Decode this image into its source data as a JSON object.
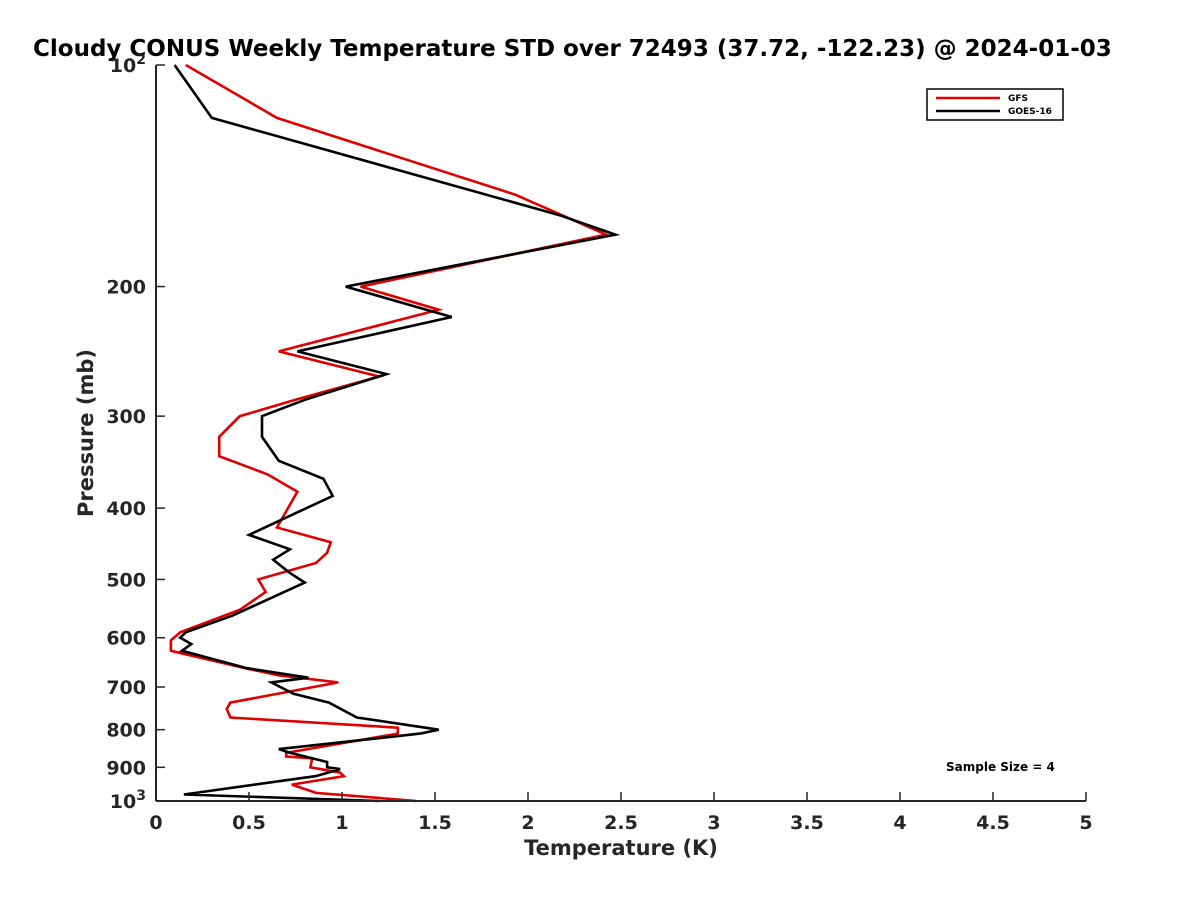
{
  "chart_data": {
    "type": "line",
    "title": "Cloudy CONUS Weekly Temperature STD over 72493 (37.72, -122.23) @ 2024-01-03",
    "xlabel": "Temperature (K)",
    "ylabel": "Pressure (mb)",
    "xlim": [
      0,
      5
    ],
    "ylim": [
      100,
      1000
    ],
    "y_scale": "log",
    "y_reversed": true,
    "grid": false,
    "legend_position": "top-right",
    "x_ticks": [
      0,
      0.5,
      1,
      1.5,
      2,
      2.5,
      3,
      3.5,
      4,
      4.5,
      5
    ],
    "x_tick_labels": [
      "0",
      "0.5",
      "1",
      "1.5",
      "2",
      "2.5",
      "3",
      "3.5",
      "4",
      "4.5",
      "5"
    ],
    "y_ticks": [
      100,
      200,
      300,
      400,
      500,
      600,
      700,
      800,
      900,
      1000
    ],
    "y_tick_labels": [
      {
        "base": "10",
        "exp": "2"
      },
      {
        "base": "200",
        "exp": ""
      },
      {
        "base": "300",
        "exp": ""
      },
      {
        "base": "400",
        "exp": ""
      },
      {
        "base": "500",
        "exp": ""
      },
      {
        "base": "600",
        "exp": ""
      },
      {
        "base": "700",
        "exp": ""
      },
      {
        "base": "800",
        "exp": ""
      },
      {
        "base": "900",
        "exp": ""
      },
      {
        "base": "10",
        "exp": "3"
      }
    ],
    "annotation": "Sample Size = 4",
    "series": [
      {
        "name": "GFS",
        "color": "#e00000",
        "points": [
          [
            0.16,
            100
          ],
          [
            0.65,
            118
          ],
          [
            1.93,
            150
          ],
          [
            2.42,
            170
          ],
          [
            1.1,
            200
          ],
          [
            1.52,
            215
          ],
          [
            0.66,
            245
          ],
          [
            1.2,
            265
          ],
          [
            0.75,
            285
          ],
          [
            0.45,
            300
          ],
          [
            0.34,
            320
          ],
          [
            0.34,
            340
          ],
          [
            0.6,
            360
          ],
          [
            0.76,
            380
          ],
          [
            0.65,
            425
          ],
          [
            0.94,
            445
          ],
          [
            0.92,
            460
          ],
          [
            0.86,
            475
          ],
          [
            0.55,
            500
          ],
          [
            0.59,
            520
          ],
          [
            0.45,
            550
          ],
          [
            0.13,
            590
          ],
          [
            0.08,
            605
          ],
          [
            0.08,
            625
          ],
          [
            0.48,
            660
          ],
          [
            0.66,
            675
          ],
          [
            0.98,
            690
          ],
          [
            0.4,
            735
          ],
          [
            0.38,
            750
          ],
          [
            0.4,
            770
          ],
          [
            1.3,
            795
          ],
          [
            1.3,
            810
          ],
          [
            0.7,
            860
          ],
          [
            0.7,
            870
          ],
          [
            0.84,
            875
          ],
          [
            0.83,
            900
          ],
          [
            0.99,
            915
          ],
          [
            1.01,
            925
          ],
          [
            0.73,
            950
          ],
          [
            0.86,
            975
          ],
          [
            1.4,
            1000
          ]
        ]
      },
      {
        "name": "GOES-16",
        "color": "#000000",
        "points": [
          [
            0.1,
            100
          ],
          [
            0.3,
            118
          ],
          [
            2.17,
            160
          ],
          [
            2.47,
            170
          ],
          [
            1.02,
            200
          ],
          [
            1.59,
            220
          ],
          [
            0.76,
            245
          ],
          [
            1.24,
            263
          ],
          [
            0.8,
            285
          ],
          [
            0.57,
            300
          ],
          [
            0.57,
            320
          ],
          [
            0.66,
            345
          ],
          [
            0.9,
            365
          ],
          [
            0.95,
            385
          ],
          [
            0.5,
            435
          ],
          [
            0.72,
            455
          ],
          [
            0.63,
            470
          ],
          [
            0.72,
            490
          ],
          [
            0.8,
            505
          ],
          [
            0.41,
            560
          ],
          [
            0.16,
            590
          ],
          [
            0.13,
            600
          ],
          [
            0.19,
            612
          ],
          [
            0.14,
            625
          ],
          [
            0.49,
            660
          ],
          [
            0.82,
            680
          ],
          [
            0.62,
            690
          ],
          [
            0.74,
            715
          ],
          [
            0.93,
            735
          ],
          [
            1.08,
            770
          ],
          [
            1.52,
            800
          ],
          [
            1.42,
            810
          ],
          [
            0.66,
            850
          ],
          [
            0.72,
            860
          ],
          [
            0.92,
            885
          ],
          [
            0.92,
            900
          ],
          [
            0.99,
            905
          ],
          [
            0.86,
            925
          ],
          [
            0.15,
            980
          ],
          [
            1.2,
            1000
          ]
        ]
      }
    ]
  }
}
